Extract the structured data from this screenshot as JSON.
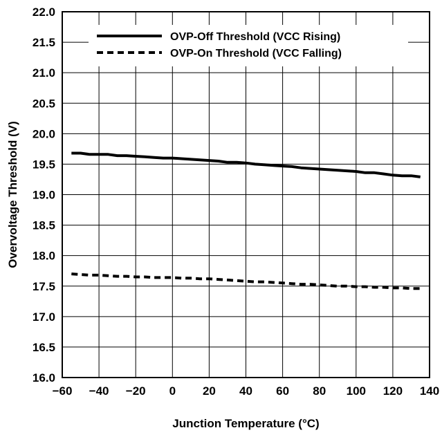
{
  "chart_data": {
    "type": "line",
    "title": "",
    "xlabel": "Junction Temperature (°C)",
    "ylabel": "Overvoltage Threshold (V)",
    "xlim": [
      -60,
      140
    ],
    "ylim": [
      16.0,
      22.0
    ],
    "xticks": [
      "−60",
      "−40",
      "−20",
      "0",
      "20",
      "40",
      "60",
      "80",
      "100",
      "120",
      "140"
    ],
    "yticks": [
      "16.0",
      "16.5",
      "17.0",
      "17.5",
      "18.0",
      "18.5",
      "19.0",
      "19.5",
      "20.0",
      "20.5",
      "21.0",
      "21.5",
      "22.0"
    ],
    "grid": true,
    "legend_position": "top",
    "series": [
      {
        "name": "OVP-Off Threshold (VCC Rising)",
        "style": "solid",
        "color": "#000000",
        "x": [
          -55,
          -50,
          -45,
          -40,
          -35,
          -30,
          -25,
          -20,
          -15,
          -10,
          -5,
          0,
          5,
          10,
          15,
          20,
          25,
          30,
          35,
          40,
          45,
          50,
          55,
          60,
          65,
          70,
          75,
          80,
          85,
          90,
          95,
          100,
          105,
          110,
          115,
          120,
          125,
          130,
          135
        ],
        "y": [
          19.68,
          19.68,
          19.66,
          19.66,
          19.66,
          19.64,
          19.64,
          19.63,
          19.62,
          19.61,
          19.6,
          19.6,
          19.59,
          19.58,
          19.57,
          19.56,
          19.55,
          19.53,
          19.53,
          19.52,
          19.5,
          19.49,
          19.48,
          19.47,
          19.46,
          19.44,
          19.43,
          19.42,
          19.41,
          19.4,
          19.39,
          19.38,
          19.36,
          19.36,
          19.34,
          19.32,
          19.31,
          19.31,
          19.29
        ]
      },
      {
        "name": "OVP-On Threshold (VCC Falling)",
        "style": "dashed",
        "color": "#000000",
        "x": [
          -55,
          -50,
          -45,
          -40,
          -35,
          -30,
          -25,
          -20,
          -15,
          -10,
          -5,
          0,
          5,
          10,
          15,
          20,
          25,
          30,
          35,
          40,
          45,
          50,
          55,
          60,
          65,
          70,
          75,
          80,
          85,
          90,
          95,
          100,
          105,
          110,
          115,
          120,
          125,
          130,
          135
        ],
        "y": [
          17.7,
          17.69,
          17.68,
          17.68,
          17.67,
          17.66,
          17.66,
          17.65,
          17.65,
          17.64,
          17.64,
          17.64,
          17.63,
          17.63,
          17.62,
          17.62,
          17.61,
          17.6,
          17.59,
          17.58,
          17.57,
          17.57,
          17.56,
          17.55,
          17.54,
          17.53,
          17.53,
          17.52,
          17.51,
          17.5,
          17.5,
          17.49,
          17.49,
          17.48,
          17.48,
          17.47,
          17.47,
          17.46,
          17.46
        ]
      }
    ]
  }
}
